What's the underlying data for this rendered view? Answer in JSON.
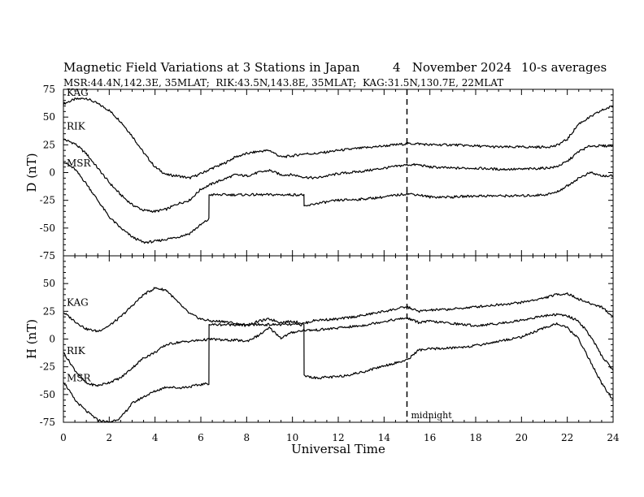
{
  "chart_data": [
    {
      "type": "line",
      "panel": "D",
      "title": "Magnetic Field Variations at 3 Stations in Japan",
      "date_text": "4   November 2024",
      "averaging": "10-s averages",
      "subtitle": "MSR:44.4N,142.3E, 35MLAT;  RIK:43.5N,143.8E, 35MLAT;  KAG:31.5N,130.7E, 22MLAT",
      "ylabel": "D (nT)",
      "xlabel": "",
      "xlim": [
        0,
        24
      ],
      "ylim": [
        -75,
        75
      ],
      "yticks": [
        75,
        50,
        25,
        0,
        -25,
        -50,
        -75
      ],
      "series": [
        {
          "name": "KAG",
          "x": [
            0,
            0.5,
            1,
            1.5,
            2,
            2.5,
            3,
            3.5,
            4,
            4.5,
            5,
            5.5,
            6,
            6.5,
            7,
            7.5,
            8,
            8.5,
            9,
            9.5,
            10,
            10.5,
            11,
            12,
            13,
            14,
            15,
            15.5,
            16,
            17,
            18,
            19,
            20,
            21,
            21.5,
            22,
            22.5,
            23,
            23.5,
            24
          ],
          "y": [
            62,
            66,
            67,
            62,
            56,
            46,
            33,
            18,
            5,
            -2,
            -3,
            -5,
            -1,
            4,
            8,
            14,
            17,
            19,
            20,
            14,
            15,
            17,
            17,
            20,
            22,
            24,
            26,
            26,
            25,
            25,
            24,
            23,
            23,
            23,
            24,
            30,
            44,
            50,
            56,
            60
          ]
        },
        {
          "name": "RIK",
          "x": [
            0,
            0.5,
            1,
            1.5,
            2,
            2.5,
            3,
            3.5,
            4,
            4.5,
            5,
            5.5,
            6,
            6.5,
            7,
            7.5,
            8,
            8.5,
            9,
            9.5,
            10,
            10.5,
            11,
            12,
            13,
            14,
            15,
            15.5,
            16,
            17,
            18,
            19,
            20,
            21,
            21.5,
            22,
            22.5,
            23,
            23.5,
            24
          ],
          "y": [
            30,
            26,
            17,
            4,
            -9,
            -20,
            -29,
            -34,
            -35,
            -33,
            -28,
            -25,
            -15,
            -10,
            -6,
            -2,
            -3,
            0,
            2,
            -2,
            -2,
            -4,
            -5,
            -1,
            1,
            4,
            7,
            7,
            5,
            4,
            4,
            3,
            3,
            4,
            5,
            10,
            19,
            24,
            24,
            24
          ]
        },
        {
          "name": "MSR",
          "x": [
            0,
            0.5,
            1,
            1.5,
            2,
            2.5,
            3,
            3.5,
            4,
            4.5,
            5,
            5.5,
            6,
            6.35,
            6.36,
            7,
            8,
            9,
            10,
            10.5,
            10.51,
            11,
            12,
            13,
            14,
            15,
            15.5,
            16,
            17,
            18,
            19,
            20,
            21,
            21.5,
            22,
            22.5,
            23,
            23.5,
            24
          ],
          "y": [
            10,
            3,
            -10,
            -25,
            -40,
            -50,
            -58,
            -63,
            -62,
            -60,
            -58,
            -55,
            -47,
            -42,
            -20,
            -20,
            -20,
            -20,
            -20,
            -20,
            -31,
            -28,
            -25,
            -24,
            -22,
            -19,
            -20,
            -22,
            -22,
            -21,
            -21,
            -21,
            -20,
            -18,
            -12,
            -5,
            0,
            -3,
            -3
          ]
        }
      ],
      "colors": {
        "line": "#000000"
      }
    },
    {
      "type": "line",
      "panel": "H",
      "ylabel": "H (nT)",
      "xlabel": "Universal Time",
      "xlim": [
        0,
        24
      ],
      "ylim": [
        -75,
        75
      ],
      "yticks": [
        50,
        25,
        0,
        -25,
        -50,
        -75
      ],
      "xticks": [
        0,
        2,
        4,
        6,
        8,
        10,
        12,
        14,
        16,
        18,
        20,
        22,
        24
      ],
      "annotation": "midnight",
      "midnight_ut": 15,
      "series": [
        {
          "name": "KAG",
          "x": [
            0,
            0.5,
            1,
            1.5,
            2,
            2.5,
            3,
            3.5,
            4,
            4.5,
            5,
            5.5,
            6,
            6.5,
            7,
            7.5,
            8,
            8.5,
            9,
            9.5,
            10,
            10.5,
            11,
            12,
            13,
            14,
            15,
            15.5,
            16,
            17,
            18,
            19,
            20,
            21,
            21.5,
            22,
            22.5,
            23,
            23.5,
            24
          ],
          "y": [
            24,
            16,
            9,
            7,
            12,
            20,
            30,
            40,
            46,
            44,
            33,
            23,
            18,
            16,
            16,
            14,
            12,
            16,
            18,
            15,
            16,
            14,
            17,
            18,
            21,
            25,
            29,
            25,
            26,
            27,
            29,
            31,
            33,
            37,
            40,
            41,
            36,
            32,
            29,
            20
          ]
        },
        {
          "name": "RIK",
          "x": [
            0,
            0.5,
            1,
            1.5,
            2,
            2.5,
            3,
            3.5,
            4,
            4.5,
            5,
            5.5,
            6,
            6.5,
            7,
            7.5,
            8,
            8.5,
            9,
            9.5,
            10,
            10.5,
            11,
            12,
            13,
            14,
            15,
            15.5,
            16,
            17,
            18,
            19,
            20,
            21,
            21.5,
            22,
            22.5,
            23,
            23.5,
            24
          ],
          "y": [
            -12,
            -28,
            -40,
            -42,
            -39,
            -35,
            -26,
            -17,
            -12,
            -5,
            -3,
            -2,
            -1,
            0,
            -1,
            -1,
            -2,
            3,
            10,
            1,
            6,
            8,
            8,
            10,
            12,
            16,
            19,
            15,
            16,
            14,
            12,
            14,
            17,
            21,
            22,
            21,
            16,
            3,
            -15,
            -28
          ]
        },
        {
          "name": "MSR",
          "x": [
            0,
            0.5,
            1,
            1.5,
            2,
            2.5,
            3,
            3.5,
            4,
            4.5,
            5,
            5.5,
            6,
            6.35,
            6.36,
            7,
            8,
            9,
            10,
            10.5,
            10.51,
            11,
            12,
            13,
            14,
            15,
            15.5,
            16,
            17,
            18,
            19,
            20,
            21,
            21.5,
            22,
            22.5,
            23,
            23.5,
            24
          ],
          "y": [
            -38,
            -55,
            -65,
            -73,
            -75,
            -71,
            -58,
            -52,
            -47,
            -43,
            -44,
            -43,
            -41,
            -40,
            13,
            13,
            13,
            13,
            13,
            13,
            -33,
            -35,
            -34,
            -30,
            -24,
            -19,
            -10,
            -9,
            -8,
            -6,
            -2,
            2,
            10,
            14,
            10,
            0,
            -20,
            -40,
            -55
          ]
        }
      ],
      "colors": {
        "line": "#000000"
      }
    }
  ]
}
